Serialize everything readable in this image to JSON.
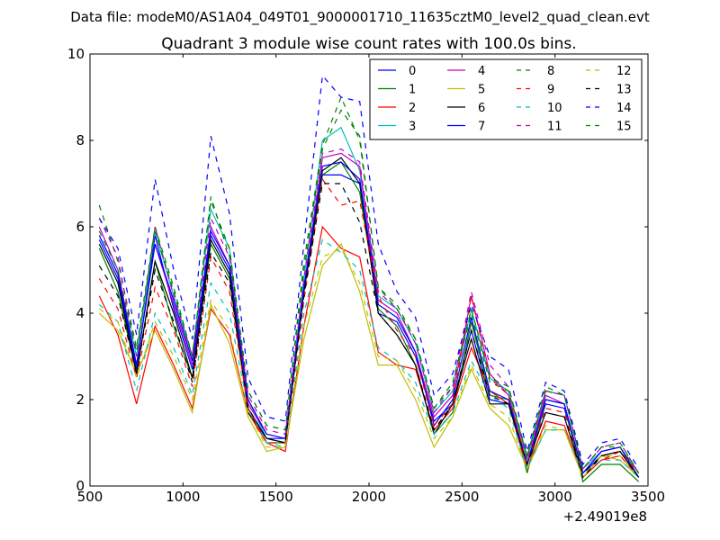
{
  "suptitle": "Data file: modeM0/AS1A04_049T01_9000001710_11635cztM0_level2_quad_clean.evt",
  "chart_data": {
    "type": "line",
    "title": "Quadrant 3 module wise count rates with 100.0s bins.",
    "xlabel": "",
    "ylabel": "",
    "x_offset_label": "+2.49019e8",
    "xlim": [
      500,
      3500
    ],
    "ylim": [
      0,
      10
    ],
    "xticks": [
      500,
      1000,
      1500,
      2000,
      2500,
      3000,
      3500
    ],
    "xtick_labels": [
      "500",
      "1000",
      "1500",
      "2000",
      "2500",
      "3000",
      "3500"
    ],
    "yticks": [
      0,
      2,
      4,
      6,
      8,
      10
    ],
    "ytick_labels": [
      "0",
      "2",
      "4",
      "6",
      "8",
      "10"
    ],
    "grid": false,
    "legend_position": "top-right",
    "x": [
      550,
      650,
      750,
      850,
      950,
      1050,
      1150,
      1250,
      1350,
      1450,
      1550,
      1650,
      1750,
      1850,
      1950,
      2050,
      2150,
      2250,
      2350,
      2450,
      2550,
      2650,
      2750,
      2850,
      2950,
      3050,
      3150,
      3250,
      3350,
      3450
    ],
    "series": [
      {
        "name": "0",
        "color": "#0000ff",
        "style": "solid",
        "values": [
          5.7,
          4.8,
          2.7,
          5.8,
          4.1,
          2.7,
          5.8,
          5.0,
          1.8,
          1.1,
          1.1,
          4.5,
          7.2,
          7.2,
          7.0,
          4.0,
          3.8,
          3.0,
          1.5,
          1.9,
          3.6,
          2.0,
          1.9,
          0.5,
          1.9,
          1.8,
          0.3,
          0.7,
          0.8,
          0.2
        ]
      },
      {
        "name": "1",
        "color": "#008000",
        "style": "solid",
        "values": [
          5.5,
          4.5,
          2.6,
          5.2,
          3.7,
          2.5,
          5.6,
          4.8,
          1.8,
          1.0,
          1.0,
          4.5,
          7.2,
          7.5,
          6.8,
          4.1,
          3.7,
          2.8,
          1.2,
          1.7,
          3.8,
          2.1,
          2.0,
          0.3,
          2.0,
          1.9,
          0.1,
          0.5,
          0.5,
          0.1
        ]
      },
      {
        "name": "2",
        "color": "#ff0000",
        "style": "solid",
        "values": [
          4.4,
          3.5,
          1.9,
          3.7,
          2.8,
          1.8,
          4.1,
          3.5,
          1.7,
          1.0,
          0.8,
          3.7,
          6.0,
          5.5,
          5.3,
          3.1,
          2.8,
          2.7,
          1.3,
          1.8,
          3.2,
          2.2,
          1.9,
          0.4,
          1.5,
          1.4,
          0.2,
          0.6,
          0.7,
          0.2
        ]
      },
      {
        "name": "3",
        "color": "#00bfbf",
        "style": "solid",
        "values": [
          5.8,
          4.9,
          3.0,
          5.9,
          4.4,
          3.0,
          6.4,
          5.5,
          2.0,
          1.1,
          1.0,
          4.8,
          8.0,
          8.3,
          7.3,
          4.4,
          4.1,
          3.3,
          1.7,
          2.2,
          4.1,
          2.5,
          2.2,
          0.6,
          2.2,
          2.1,
          0.4,
          0.8,
          0.9,
          0.3
        ]
      },
      {
        "name": "4",
        "color": "#bf00bf",
        "style": "solid",
        "values": [
          6.0,
          5.0,
          2.8,
          5.6,
          4.2,
          2.8,
          6.0,
          5.1,
          1.9,
          1.2,
          1.1,
          4.6,
          7.6,
          7.7,
          7.4,
          4.3,
          4.0,
          3.1,
          1.6,
          2.1,
          4.4,
          2.6,
          2.1,
          0.5,
          2.1,
          1.9,
          0.3,
          0.8,
          0.9,
          0.2
        ]
      },
      {
        "name": "5",
        "color": "#bfbf00",
        "style": "solid",
        "values": [
          4.0,
          3.6,
          2.6,
          3.6,
          2.7,
          1.7,
          4.2,
          3.3,
          1.6,
          0.8,
          0.9,
          3.4,
          5.1,
          5.6,
          4.5,
          2.8,
          2.8,
          2.0,
          0.9,
          1.6,
          2.7,
          1.8,
          1.4,
          0.4,
          1.3,
          1.3,
          0.2,
          0.7,
          0.6,
          0.2
        ]
      },
      {
        "name": "6",
        "color": "#000000",
        "style": "solid",
        "values": [
          5.6,
          4.7,
          2.6,
          5.2,
          4.0,
          2.5,
          5.7,
          4.9,
          1.7,
          1.1,
          1.0,
          4.5,
          7.3,
          7.6,
          7.0,
          4.0,
          3.5,
          2.8,
          1.2,
          1.9,
          3.4,
          1.9,
          1.9,
          0.5,
          1.7,
          1.6,
          0.2,
          0.7,
          0.8,
          0.2
        ]
      },
      {
        "name": "7",
        "color": "#0000ff",
        "style": "solid",
        "values": [
          5.8,
          4.9,
          2.8,
          5.6,
          4.3,
          2.9,
          5.9,
          5.1,
          2.0,
          1.2,
          1.1,
          4.6,
          7.4,
          7.5,
          7.1,
          4.2,
          3.9,
          3.1,
          1.4,
          2.0,
          3.9,
          2.2,
          2.0,
          0.5,
          2.0,
          1.9,
          0.3,
          0.8,
          0.9,
          0.2
        ]
      },
      {
        "name": "8",
        "color": "#008000",
        "style": "dashed",
        "values": [
          6.5,
          5.2,
          3.2,
          6.0,
          4.6,
          3.0,
          6.7,
          5.3,
          2.2,
          1.4,
          1.3,
          5.2,
          7.9,
          9.0,
          8.0,
          4.6,
          4.2,
          3.4,
          1.8,
          2.3,
          4.0,
          2.4,
          2.2,
          0.7,
          2.2,
          2.1,
          0.4,
          0.9,
          0.9,
          0.3
        ]
      },
      {
        "name": "9",
        "color": "#ff0000",
        "style": "dashed",
        "values": [
          4.8,
          4.1,
          2.5,
          4.6,
          3.6,
          2.3,
          5.3,
          4.5,
          1.8,
          1.0,
          1.0,
          4.3,
          7.1,
          6.5,
          6.6,
          4.4,
          3.6,
          3.0,
          1.4,
          1.9,
          4.4,
          2.5,
          2.1,
          0.5,
          1.8,
          1.7,
          0.3,
          0.6,
          0.8,
          0.3
        ]
      },
      {
        "name": "10",
        "color": "#00bfbf",
        "style": "dashed",
        "values": [
          4.2,
          3.8,
          2.2,
          4.0,
          3.2,
          2.1,
          4.7,
          4.0,
          1.8,
          1.0,
          0.9,
          4.0,
          5.7,
          5.4,
          5.0,
          3.2,
          2.9,
          2.4,
          1.2,
          1.7,
          2.9,
          2.1,
          1.8,
          0.4,
          1.3,
          1.3,
          0.3,
          0.6,
          0.6,
          0.2
        ]
      },
      {
        "name": "11",
        "color": "#bf00bf",
        "style": "dashed",
        "values": [
          6.2,
          5.3,
          3.0,
          6.0,
          4.4,
          3.0,
          6.2,
          5.3,
          2.1,
          1.3,
          1.2,
          4.8,
          7.7,
          7.8,
          7.5,
          4.5,
          4.1,
          3.3,
          1.7,
          2.3,
          4.5,
          2.8,
          2.3,
          0.6,
          2.2,
          2.1,
          0.4,
          0.9,
          1.0,
          0.3
        ]
      },
      {
        "name": "12",
        "color": "#bfbf00",
        "style": "dashed",
        "values": [
          4.1,
          3.8,
          2.5,
          3.8,
          3.0,
          2.0,
          4.3,
          3.6,
          1.7,
          0.9,
          0.9,
          3.7,
          5.3,
          5.5,
          4.7,
          3.0,
          2.9,
          2.2,
          1.1,
          1.6,
          2.8,
          1.9,
          1.6,
          0.4,
          1.4,
          1.3,
          0.2,
          0.7,
          0.7,
          0.2
        ]
      },
      {
        "name": "13",
        "color": "#000000",
        "style": "dashed",
        "values": [
          5.1,
          4.4,
          2.6,
          5.0,
          3.8,
          2.4,
          5.4,
          4.7,
          1.8,
          1.1,
          1.0,
          4.4,
          7.0,
          7.0,
          6.1,
          4.0,
          3.5,
          2.8,
          1.3,
          1.9,
          3.6,
          2.1,
          1.9,
          0.5,
          1.7,
          1.6,
          0.3,
          0.7,
          0.8,
          0.2
        ]
      },
      {
        "name": "14",
        "color": "#0000ff",
        "style": "dashed",
        "values": [
          6.2,
          5.5,
          3.5,
          7.1,
          5.0,
          3.4,
          8.1,
          6.3,
          2.5,
          1.6,
          1.5,
          5.6,
          9.5,
          9.0,
          8.9,
          5.6,
          4.5,
          3.9,
          2.1,
          2.6,
          4.2,
          3.0,
          2.7,
          0.8,
          2.4,
          2.2,
          0.5,
          1.0,
          1.1,
          0.4
        ]
      },
      {
        "name": "15",
        "color": "#008000",
        "style": "dashed",
        "values": [
          5.9,
          5.0,
          3.1,
          5.9,
          4.5,
          3.0,
          6.6,
          5.5,
          2.2,
          1.4,
          1.3,
          5.0,
          7.8,
          8.7,
          8.1,
          4.6,
          4.1,
          3.4,
          1.8,
          2.4,
          4.1,
          2.5,
          2.3,
          0.7,
          2.3,
          2.1,
          0.4,
          0.9,
          1.0,
          0.3
        ]
      }
    ]
  }
}
